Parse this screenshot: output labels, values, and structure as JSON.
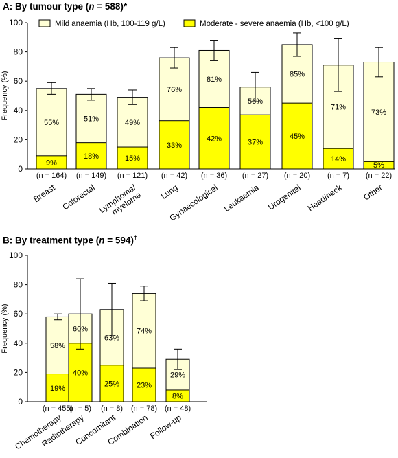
{
  "colors": {
    "mild": "#ffffd6",
    "moderate": "#ffff00",
    "border": "#000000"
  },
  "chart_data": [
    {
      "type": "bar",
      "title_prefix": "A: By tumour type (",
      "title_n": "n",
      "title_value": " = 588)",
      "title_mark": "*",
      "ylabel": "Frequency (%)",
      "ylim": [
        0,
        100
      ],
      "yticks": [
        0,
        20,
        40,
        60,
        80,
        100
      ],
      "legend": [
        "Mild anaemia (Hb, 100-119 g/L)",
        "Moderate - severe anaemia (Hb, <100 g/L)"
      ],
      "categories": [
        "Breast",
        "Colorectal",
        "Lymphoma/\nmyeloma",
        "Lung",
        "Gynaecological",
        "Leukaemia",
        "Urogenital",
        "Head/neck",
        "Other"
      ],
      "n_labels": [
        "(n = 164)",
        "(n = 149)",
        "(n = 121)",
        "(n = 42)",
        "(n = 36)",
        "(n = 27)",
        "(n = 20)",
        "(n = 7)",
        "(n = 22)"
      ],
      "series": [
        {
          "name": "Moderate - severe anaemia (Hb, <100 g/L)",
          "values": [
            9,
            18,
            15,
            33,
            42,
            37,
            45,
            14,
            5
          ],
          "labels": [
            "9%",
            "18%",
            "15%",
            "33%",
            "42%",
            "37%",
            "45%",
            "14%",
            "5%"
          ]
        },
        {
          "name": "Mild anaemia (Hb, 100-119 g/L)",
          "values": [
            55,
            51,
            49,
            76,
            81,
            56,
            85,
            71,
            73
          ],
          "labels": [
            "55%",
            "51%",
            "49%",
            "76%",
            "81%",
            "56%",
            "85%",
            "71%",
            "73%"
          ]
        }
      ],
      "error_bars": [
        [
          51,
          59
        ],
        [
          47,
          55
        ],
        [
          44,
          54
        ],
        [
          69,
          83
        ],
        [
          74,
          88
        ],
        [
          46,
          66
        ],
        [
          77,
          93
        ],
        [
          53,
          89
        ],
        [
          63,
          83
        ]
      ]
    },
    {
      "type": "bar",
      "title_prefix": "B: By treatment type (",
      "title_n": "n",
      "title_value": " = 594)",
      "title_mark": "†",
      "ylabel": "Frequency (%)",
      "ylim": [
        0,
        100
      ],
      "yticks": [
        0,
        20,
        40,
        60,
        80,
        100
      ],
      "categories": [
        "Chemotherapy",
        "Radiotherapy",
        "Concomitant",
        "Combination",
        "Follow-up"
      ],
      "n_labels": [
        "(n = 455)",
        "(n = 5)",
        "(n = 8)",
        "(n = 78)",
        "(n = 48)"
      ],
      "series": [
        {
          "name": "Moderate - severe anaemia (Hb, <100 g/L)",
          "values": [
            19,
            40,
            25,
            23,
            8
          ],
          "labels": [
            "19%",
            "40%",
            "25%",
            "23%",
            "8%"
          ]
        },
        {
          "name": "Mild anaemia (Hb, 100-119 g/L)",
          "values": [
            58,
            60,
            63,
            74,
            29
          ],
          "labels": [
            "58%",
            "60%",
            "63%",
            "74%",
            "29%"
          ]
        }
      ],
      "error_bars": [
        [
          56,
          60
        ],
        [
          36,
          84
        ],
        [
          45,
          81
        ],
        [
          69,
          79
        ],
        [
          22,
          36
        ]
      ]
    }
  ]
}
